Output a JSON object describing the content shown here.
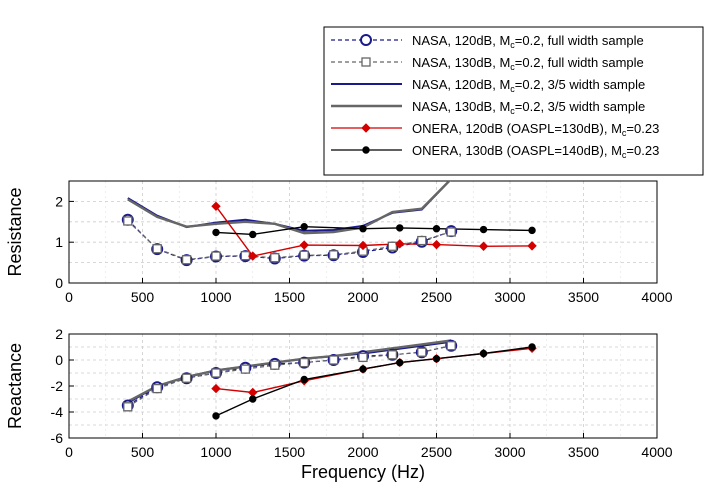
{
  "chart_data": [
    {
      "type": "line",
      "ylabel": "Resistance",
      "xlim": [
        0,
        4000
      ],
      "ylim": [
        0,
        2.5
      ],
      "xticks": [
        0,
        500,
        1000,
        1500,
        2000,
        2500,
        3000,
        3500,
        4000
      ],
      "yticks": [
        0,
        1,
        2
      ],
      "grid": true,
      "series": [
        {
          "name": "NASA, 120dB, M_c=0.2, full width sample",
          "x": [
            400,
            600,
            800,
            1000,
            1200,
            1400,
            1600,
            1800,
            2000,
            2200,
            2400,
            2600
          ],
          "y": [
            1.55,
            0.83,
            0.56,
            0.65,
            0.66,
            0.6,
            0.67,
            0.68,
            0.76,
            0.87,
            1.01,
            1.27
          ]
        },
        {
          "name": "NASA, 130dB, M_c=0.2, full width sample",
          "x": [
            400,
            600,
            800,
            1000,
            1200,
            1400,
            1600,
            1800,
            2000,
            2200,
            2400,
            2600
          ],
          "y": [
            1.52,
            0.84,
            0.57,
            0.66,
            0.67,
            0.62,
            0.68,
            0.69,
            0.78,
            0.9,
            1.04,
            1.25
          ]
        },
        {
          "name": "NASA, 120dB, M_c=0.2, 3/5 width sample",
          "x": [
            400,
            600,
            800,
            1000,
            1200,
            1400,
            1600,
            1800,
            2000,
            2200,
            2400,
            2600
          ],
          "y": [
            2.08,
            1.65,
            1.37,
            1.48,
            1.55,
            1.45,
            1.28,
            1.3,
            1.4,
            1.72,
            1.8,
            2.55
          ]
        },
        {
          "name": "NASA, 130dB, M_c=0.2, 3/5 width sample",
          "x": [
            400,
            600,
            800,
            1000,
            1200,
            1400,
            1600,
            1800,
            2000,
            2200,
            2400,
            2600
          ],
          "y": [
            2.05,
            1.62,
            1.38,
            1.45,
            1.5,
            1.45,
            1.22,
            1.25,
            1.36,
            1.74,
            1.82,
            2.55
          ]
        },
        {
          "name": "ONERA, 120dB (OASPL=130dB), M_c=0.23",
          "x": [
            1000,
            1250,
            1600,
            2000,
            2250,
            2500,
            2820,
            3150
          ],
          "y": [
            1.88,
            0.66,
            0.93,
            0.92,
            0.96,
            0.94,
            0.9,
            0.91
          ]
        },
        {
          "name": "ONERA, 130dB (OASPL=140dB), M_c=0.23",
          "x": [
            1000,
            1250,
            1600,
            2000,
            2250,
            2500,
            2820,
            3150
          ],
          "y": [
            1.24,
            1.19,
            1.38,
            1.33,
            1.35,
            1.33,
            1.31,
            1.29
          ]
        }
      ]
    },
    {
      "type": "line",
      "xlabel": "Frequency (Hz)",
      "ylabel": "Reactance",
      "xlim": [
        0,
        4000
      ],
      "ylim": [
        -6,
        2
      ],
      "xticks": [
        0,
        500,
        1000,
        1500,
        2000,
        2500,
        3000,
        3500,
        4000
      ],
      "yticks": [
        -6,
        -4,
        -2,
        0,
        2
      ],
      "grid": true,
      "series": [
        {
          "name": "NASA, 120dB, M_c=0.2, full width sample",
          "x": [
            400,
            600,
            800,
            1000,
            1200,
            1400,
            1600,
            1800,
            2000,
            2200,
            2400,
            2600
          ],
          "y": [
            -3.5,
            -2.1,
            -1.4,
            -1.0,
            -0.6,
            -0.3,
            -0.2,
            0.0,
            0.3,
            0.4,
            0.6,
            1.1
          ]
        },
        {
          "name": "NASA, 130dB, M_c=0.2, full width sample",
          "x": [
            400,
            600,
            800,
            1000,
            1200,
            1400,
            1600,
            1800,
            2000,
            2200,
            2400,
            2600
          ],
          "y": [
            -3.6,
            -2.2,
            -1.4,
            -1.0,
            -0.7,
            -0.4,
            -0.2,
            0.0,
            0.2,
            0.4,
            0.6,
            1.1
          ]
        },
        {
          "name": "NASA, 120dB, M_c=0.2, 3/5 width sample",
          "x": [
            400,
            600,
            800,
            1000,
            1200,
            1400,
            1600,
            1800,
            2000,
            2200,
            2400,
            2600
          ],
          "y": [
            -3.3,
            -2.0,
            -1.3,
            -0.8,
            -0.5,
            -0.2,
            0.1,
            0.3,
            0.5,
            0.8,
            1.1,
            1.4
          ]
        },
        {
          "name": "NASA, 130dB, M_c=0.2, 3/5 width sample",
          "x": [
            400,
            600,
            800,
            1000,
            1200,
            1400,
            1600,
            1800,
            2000,
            2200,
            2400,
            2600
          ],
          "y": [
            -3.2,
            -2.0,
            -1.3,
            -0.8,
            -0.5,
            -0.2,
            0.1,
            0.3,
            0.6,
            0.9,
            1.2,
            1.5
          ]
        },
        {
          "name": "ONERA, 120dB (OASPL=130dB), M_c=0.23",
          "x": [
            1000,
            1250,
            1600,
            2000,
            2250,
            2500,
            2820,
            3150
          ],
          "y": [
            -2.2,
            -2.5,
            -1.6,
            -0.7,
            -0.2,
            0.1,
            0.5,
            0.9
          ]
        },
        {
          "name": "ONERA, 130dB (OASPL=140dB), M_c=0.23",
          "x": [
            1000,
            1250,
            1600,
            2000,
            2250,
            2500,
            2820,
            3150
          ],
          "y": [
            -4.3,
            -3.0,
            -1.5,
            -0.7,
            -0.2,
            0.1,
            0.5,
            1.0
          ]
        }
      ]
    }
  ],
  "legend": {
    "placement": "top-right",
    "entries": [
      {
        "label": "NASA, 120dB, M",
        "sub": "c",
        "tail": "=0.2, full width sample",
        "color": "#1a1a8c",
        "dash": "4,3",
        "marker": "circle"
      },
      {
        "label": "NASA, 130dB, M",
        "sub": "c",
        "tail": "=0.2, full width sample",
        "color": "#666666",
        "dash": "4,3",
        "marker": "square"
      },
      {
        "label": "NASA, 120dB, M",
        "sub": "c",
        "tail": "=0.2, 3/5 width sample",
        "color": "#1a1a8c",
        "dash": "",
        "marker": "none"
      },
      {
        "label": "NASA, 130dB, M",
        "sub": "c",
        "tail": "=0.2, 3/5 width sample",
        "color": "#666666",
        "dash": "",
        "marker": "none"
      },
      {
        "label": "ONERA, 120dB (OASPL=130dB), M",
        "sub": "c",
        "tail": "=0.23",
        "color": "#d40000",
        "dash": "",
        "marker": "diamond"
      },
      {
        "label": "ONERA, 130dB (OASPL=140dB), M",
        "sub": "c",
        "tail": "=0.23",
        "color": "#000000",
        "dash": "",
        "marker": "dot"
      }
    ]
  },
  "styles": [
    {
      "color": "#1a1a8c",
      "dash": "4,3",
      "marker": "circle",
      "width": 1.2
    },
    {
      "color": "#666666",
      "dash": "4,3",
      "marker": "square",
      "width": 1.2
    },
    {
      "color": "#1a1a8c",
      "dash": "",
      "marker": "none",
      "width": 2
    },
    {
      "color": "#666666",
      "dash": "",
      "marker": "none",
      "width": 2.4
    },
    {
      "color": "#d40000",
      "dash": "",
      "marker": "diamond",
      "width": 1.4
    },
    {
      "color": "#000000",
      "dash": "",
      "marker": "dot",
      "width": 1.4
    }
  ]
}
